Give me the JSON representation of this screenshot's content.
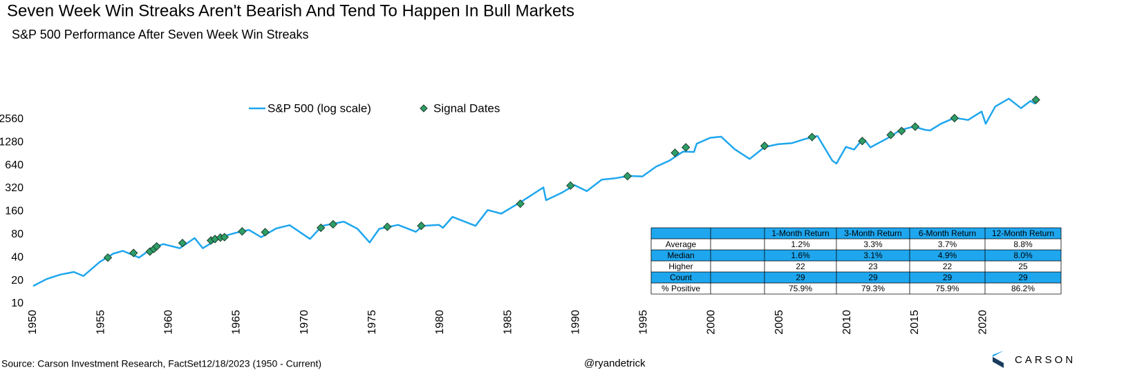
{
  "chart_data": {
    "type": "line",
    "title": "Seven Week Win Streaks Aren't Bearish And Tend To Happen In Bull Markets",
    "subtitle": "S&P 500 Performance  After Seven  Week Win Streaks",
    "log_scale": true,
    "xlim": [
      1950,
      2025
    ],
    "xticks": [
      1950,
      1955,
      1960,
      1965,
      1970,
      1975,
      1980,
      1985,
      1990,
      1995,
      2000,
      2005,
      2010,
      2015,
      2020
    ],
    "ylim": [
      10,
      5120
    ],
    "yticks": [
      10,
      20,
      40,
      80,
      160,
      320,
      640,
      1280,
      2560
    ],
    "series": [
      {
        "name": "S&P 500 (log scale)",
        "type": "line",
        "color": "#1ea6ee",
        "x": [
          1950.0,
          1951,
          1952,
          1953,
          1953.7,
          1954.9,
          1955.9,
          1956.6,
          1957.8,
          1958.9,
          1959.6,
          1960.8,
          1961.9,
          1962.5,
          1963.9,
          1964.9,
          1965.9,
          1966.8,
          1967.9,
          1968.9,
          1970.4,
          1971.3,
          1972.9,
          1973.9,
          1974.8,
          1975.5,
          1976.9,
          1978.2,
          1978.7,
          1979.9,
          1980.2,
          1980.9,
          1982.6,
          1983.5,
          1984.5,
          1985.9,
          1987.6,
          1987.8,
          1988.9,
          1989.9,
          1990.8,
          1991.9,
          1992.9,
          1993.9,
          1994.9,
          1995.9,
          1996.9,
          1997.9,
          1998.7,
          1998.9,
          1999.9,
          2000.7,
          2001.7,
          2002.8,
          2003.9,
          2004.9,
          2005.9,
          2006.9,
          2007.8,
          2008.9,
          2009.2,
          2009.9,
          2010.5,
          2010.9,
          2011.3,
          2011.7,
          2012.9,
          2013.9,
          2014.9,
          2015.7,
          2016.1,
          2016.9,
          2017.9,
          2018.9,
          2019.9,
          2020.2,
          2020.9,
          2021.9,
          2022.8,
          2023.5,
          2023.8,
          2023.96
        ],
        "values": [
          17,
          21,
          24,
          26,
          23,
          35,
          45,
          49,
          40,
          55,
          60,
          53,
          72,
          53,
          75,
          84,
          92,
          74,
          96,
          106,
          70,
          104,
          118,
          95,
          63,
          95,
          107,
          87,
          104,
          107,
          98,
          136,
          104,
          167,
          150,
          211,
          330,
          225,
          278,
          353,
          295,
          417,
          435,
          466,
          459,
          615,
          740,
          970,
          960,
          1229,
          1469,
          1517,
          1040,
          777,
          1111,
          1211,
          1248,
          1418,
          1549,
          735,
          677,
          1115,
          1030,
          1257,
          1363,
          1099,
          1426,
          1848,
          2058,
          1867,
          1829,
          2238,
          2673,
          2506,
          3230,
          2237,
          3756,
          4766,
          3577,
          4450,
          4117,
          4740
        ]
      },
      {
        "name": "Signal Dates",
        "type": "scatter",
        "color": "#2e9e68",
        "x": [
          1955.5,
          1957.4,
          1958.6,
          1958.9,
          1959.1,
          1961.0,
          1963.1,
          1963.4,
          1963.8,
          1964.1,
          1965.4,
          1967.1,
          1971.2,
          1972.1,
          1976.1,
          1978.6,
          1985.9,
          1989.6,
          1993.8,
          1997.3,
          1998.1,
          2003.9,
          2007.4,
          2011.1,
          2013.2,
          2014.0,
          2015.0,
          2017.9,
          2023.9
        ],
        "values": [
          40,
          46,
          48,
          52,
          56,
          62,
          67,
          70,
          73,
          74,
          88,
          86,
          98,
          109,
          101,
          104,
          202,
          349,
          463,
          935,
          1100,
          1150,
          1500,
          1330,
          1600,
          1800,
          2050,
          2650,
          4590
        ]
      }
    ]
  },
  "table": {
    "columns": [
      "1-Month Return",
      "3-Month Return",
      "6-Month Return",
      "12-Month Return"
    ],
    "rows": [
      [
        "Average",
        "1.2%",
        "3.3%",
        "3.7%",
        "8.8%"
      ],
      [
        "Median",
        "1.6%",
        "3.1%",
        "4.9%",
        "8.0%"
      ],
      [
        "Higher",
        "22",
        "23",
        "22",
        "25"
      ],
      [
        "Count",
        "29",
        "29",
        "29",
        "29"
      ],
      [
        "% Positive",
        "75.9%",
        "79.3%",
        "75.9%",
        "86.2%"
      ]
    ]
  },
  "source": "Source: Carson Investment Research, FactSet12/18/2023 (1950 - Current)",
  "handle": "@ryandetrick",
  "logo": "CARSON"
}
